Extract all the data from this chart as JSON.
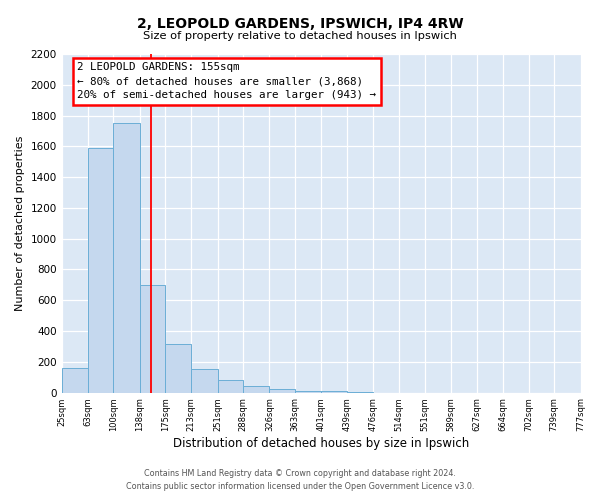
{
  "title": "2, LEOPOLD GARDENS, IPSWICH, IP4 4RW",
  "subtitle": "Size of property relative to detached houses in Ipswich",
  "xlabel": "Distribution of detached houses by size in Ipswich",
  "ylabel": "Number of detached properties",
  "bar_color": "#c5d8ee",
  "bar_edge_color": "#6baed6",
  "background_color": "#dce8f5",
  "grid_color": "#ffffff",
  "red_line_x": 155,
  "annotation_title": "2 LEOPOLD GARDENS: 155sqm",
  "annotation_line1": "← 80% of detached houses are smaller (3,868)",
  "annotation_line2": "20% of semi-detached houses are larger (943) →",
  "bin_edges": [
    25,
    63,
    100,
    138,
    175,
    213,
    251,
    288,
    326,
    363,
    401,
    439,
    476,
    514,
    551,
    589,
    627,
    664,
    702,
    739,
    777
  ],
  "bar_heights": [
    160,
    1590,
    1750,
    700,
    315,
    155,
    80,
    45,
    25,
    10,
    10,
    5,
    0,
    0,
    0,
    0,
    0,
    0,
    0,
    0
  ],
  "ylim": [
    0,
    2200
  ],
  "yticks": [
    0,
    200,
    400,
    600,
    800,
    1000,
    1200,
    1400,
    1600,
    1800,
    2000,
    2200
  ],
  "footer_line1": "Contains HM Land Registry data © Crown copyright and database right 2024.",
  "footer_line2": "Contains public sector information licensed under the Open Government Licence v3.0."
}
